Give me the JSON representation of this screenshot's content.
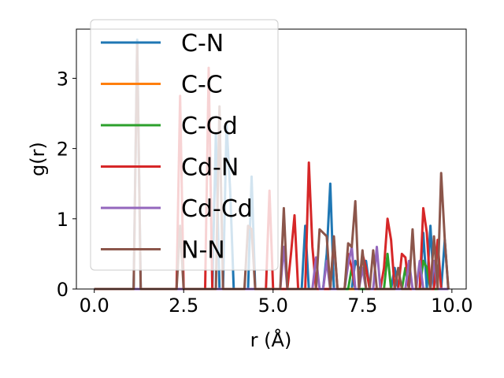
{
  "chart_data": {
    "type": "line",
    "xlabel": "r (Å)",
    "ylabel": "g(r)",
    "xlim": [
      -0.5,
      10.4
    ],
    "ylim": [
      0,
      3.7
    ],
    "xticks": [
      0.0,
      2.5,
      5.0,
      7.5,
      10.0
    ],
    "xtick_labels": [
      "0.0",
      "2.5",
      "5.0",
      "7.5",
      "10.0"
    ],
    "yticks": [
      0,
      1,
      2,
      3
    ],
    "ytick_labels": [
      "0",
      "1",
      "2",
      "3"
    ],
    "grid": false,
    "legend_position": "upper-left",
    "series": [
      {
        "name": "C-N",
        "color": "#1f77b4",
        "points": [
          [
            0,
            0
          ],
          [
            1.1,
            0
          ],
          [
            1.2,
            3.55
          ],
          [
            1.3,
            0
          ],
          [
            3.3,
            0
          ],
          [
            3.4,
            2.2
          ],
          [
            3.5,
            0
          ],
          [
            3.6,
            0
          ],
          [
            3.7,
            2.35
          ],
          [
            3.8,
            1.4
          ],
          [
            3.9,
            0
          ],
          [
            4.3,
            0
          ],
          [
            4.4,
            1.6
          ],
          [
            4.5,
            0
          ],
          [
            5.8,
            0
          ],
          [
            5.9,
            0.9
          ],
          [
            6.0,
            0
          ],
          [
            6.4,
            0
          ],
          [
            6.5,
            0.5
          ],
          [
            6.6,
            1.5
          ],
          [
            6.7,
            0
          ],
          [
            7.2,
            0
          ],
          [
            7.3,
            0.4
          ],
          [
            7.4,
            0.3
          ],
          [
            7.5,
            0.25
          ],
          [
            7.6,
            0.4
          ],
          [
            7.7,
            0
          ],
          [
            8.3,
            0
          ],
          [
            8.4,
            0.3
          ],
          [
            8.5,
            0
          ],
          [
            9.1,
            0
          ],
          [
            9.2,
            0.8
          ],
          [
            9.3,
            0
          ],
          [
            9.4,
            0.9
          ],
          [
            9.5,
            0
          ],
          [
            9.7,
            0
          ],
          [
            9.8,
            0.7
          ],
          [
            9.9,
            0
          ]
        ]
      },
      {
        "name": "C-C",
        "color": "#ff7f0e",
        "points": [
          [
            0,
            0
          ],
          [
            9.9,
            0
          ]
        ]
      },
      {
        "name": "C-Cd",
        "color": "#2ca02c",
        "points": [
          [
            0,
            0
          ],
          [
            7.1,
            0
          ],
          [
            7.2,
            0.3
          ],
          [
            7.3,
            0
          ],
          [
            8.1,
            0
          ],
          [
            8.2,
            0.5
          ],
          [
            8.3,
            0
          ],
          [
            8.6,
            0
          ],
          [
            8.7,
            0.3
          ],
          [
            8.8,
            0
          ],
          [
            9.1,
            0
          ],
          [
            9.2,
            0.4
          ],
          [
            9.3,
            0.3
          ],
          [
            9.4,
            0
          ],
          [
            9.9,
            0
          ]
        ]
      },
      {
        "name": "Cd-N",
        "color": "#d62728",
        "points": [
          [
            0,
            0
          ],
          [
            2.3,
            0
          ],
          [
            2.4,
            2.75
          ],
          [
            2.5,
            0
          ],
          [
            3.1,
            0
          ],
          [
            3.2,
            3.15
          ],
          [
            3.3,
            0
          ],
          [
            4.8,
            0
          ],
          [
            4.9,
            1.4
          ],
          [
            5.0,
            0
          ],
          [
            5.4,
            0
          ],
          [
            5.5,
            0.5
          ],
          [
            5.6,
            1.05
          ],
          [
            5.7,
            0
          ],
          [
            5.9,
            0
          ],
          [
            6.0,
            1.8
          ],
          [
            6.1,
            0.6
          ],
          [
            6.2,
            0
          ],
          [
            6.6,
            0
          ],
          [
            6.7,
            0.7
          ],
          [
            6.8,
            0
          ],
          [
            7.0,
            0
          ],
          [
            7.1,
            0.5
          ],
          [
            7.2,
            0.3
          ],
          [
            7.3,
            0
          ],
          [
            7.4,
            0
          ],
          [
            7.5,
            0.5
          ],
          [
            7.6,
            0.3
          ],
          [
            7.7,
            0
          ],
          [
            8.0,
            0
          ],
          [
            8.1,
            0.3
          ],
          [
            8.2,
            1.0
          ],
          [
            8.3,
            0.7
          ],
          [
            8.4,
            0
          ],
          [
            8.5,
            0
          ],
          [
            8.6,
            0.5
          ],
          [
            8.7,
            0.45
          ],
          [
            8.8,
            0
          ],
          [
            9.1,
            0
          ],
          [
            9.2,
            1.15
          ],
          [
            9.3,
            0.8
          ],
          [
            9.4,
            0
          ],
          [
            9.5,
            0
          ],
          [
            9.6,
            0.7
          ],
          [
            9.7,
            0
          ],
          [
            9.9,
            0
          ]
        ]
      },
      {
        "name": "Cd-Cd",
        "color": "#9467bd",
        "points": [
          [
            0,
            0
          ],
          [
            5.2,
            0
          ],
          [
            5.3,
            0.6
          ],
          [
            5.4,
            0
          ],
          [
            6.1,
            0
          ],
          [
            6.2,
            0.45
          ],
          [
            6.3,
            0
          ],
          [
            6.4,
            0
          ],
          [
            6.5,
            0.4
          ],
          [
            6.6,
            0
          ],
          [
            7.0,
            0
          ],
          [
            7.1,
            0.35
          ],
          [
            7.2,
            0.6
          ],
          [
            7.3,
            0
          ],
          [
            7.4,
            0
          ],
          [
            7.5,
            0.3
          ],
          [
            7.6,
            0
          ],
          [
            7.8,
            0
          ],
          [
            7.9,
            0.6
          ],
          [
            8.0,
            0
          ],
          [
            8.7,
            0
          ],
          [
            8.8,
            0.4
          ],
          [
            8.9,
            0
          ],
          [
            9.0,
            0
          ],
          [
            9.1,
            0.4
          ],
          [
            9.2,
            0
          ],
          [
            9.4,
            0
          ],
          [
            9.5,
            0.4
          ],
          [
            9.6,
            0
          ],
          [
            9.9,
            0
          ]
        ]
      },
      {
        "name": "N-N",
        "color": "#8c564b",
        "points": [
          [
            0,
            0
          ],
          [
            1.1,
            0
          ],
          [
            1.2,
            3.5
          ],
          [
            1.3,
            0
          ],
          [
            2.3,
            0
          ],
          [
            2.4,
            0.9
          ],
          [
            2.5,
            0
          ],
          [
            3.4,
            0
          ],
          [
            3.5,
            2.6
          ],
          [
            3.6,
            0
          ],
          [
            4.2,
            0
          ],
          [
            4.3,
            0.9
          ],
          [
            4.4,
            0.85
          ],
          [
            4.5,
            0
          ],
          [
            5.2,
            0
          ],
          [
            5.3,
            1.15
          ],
          [
            5.4,
            0
          ],
          [
            6.2,
            0
          ],
          [
            6.3,
            0.85
          ],
          [
            6.4,
            0.8
          ],
          [
            6.5,
            0.75
          ],
          [
            6.6,
            0
          ],
          [
            6.7,
            0.75
          ],
          [
            6.8,
            0
          ],
          [
            7.0,
            0
          ],
          [
            7.1,
            0.65
          ],
          [
            7.2,
            0.6
          ],
          [
            7.3,
            1.25
          ],
          [
            7.4,
            0
          ],
          [
            7.5,
            0.55
          ],
          [
            7.6,
            0
          ],
          [
            7.7,
            0
          ],
          [
            7.8,
            0.55
          ],
          [
            7.9,
            0
          ],
          [
            8.4,
            0
          ],
          [
            8.5,
            0.3
          ],
          [
            8.6,
            0
          ],
          [
            8.8,
            0
          ],
          [
            8.9,
            0.85
          ],
          [
            9.0,
            0
          ],
          [
            9.4,
            0
          ],
          [
            9.5,
            0.75
          ],
          [
            9.6,
            0
          ],
          [
            9.7,
            1.65
          ],
          [
            9.8,
            0.7
          ],
          [
            9.9,
            0
          ]
        ]
      }
    ]
  }
}
